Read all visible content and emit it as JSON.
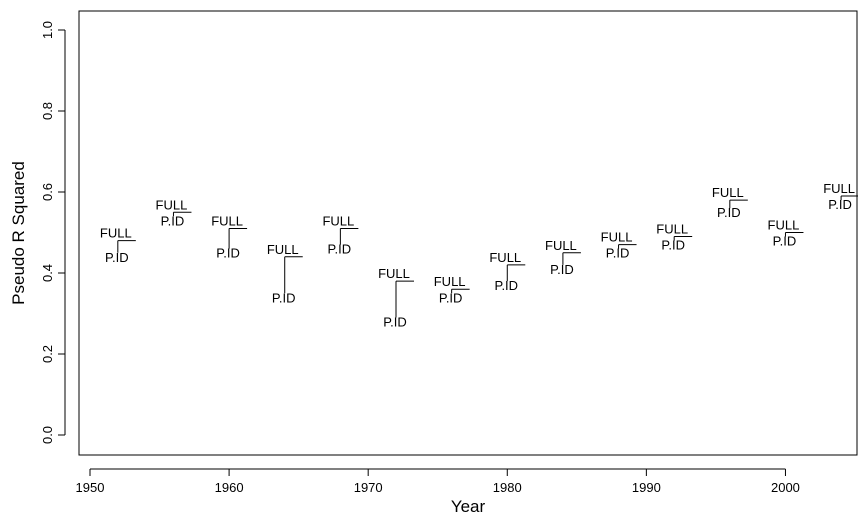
{
  "chart_data": {
    "type": "scatter",
    "title": "",
    "xlabel": "Year",
    "ylabel": "Pseudo R Squared",
    "xlim": [
      1950,
      2005
    ],
    "ylim": [
      0.0,
      1.0
    ],
    "x_ticks": [
      1950,
      1960,
      1970,
      1980,
      1990,
      2000
    ],
    "y_ticks": [
      0.0,
      0.2,
      0.4,
      0.6,
      0.8,
      1.0
    ],
    "grid": false,
    "legend": "none",
    "series": [
      {
        "name": "FULL",
        "values": [
          0.48,
          0.55,
          0.51,
          0.44,
          0.51,
          0.38,
          0.36,
          0.42,
          0.45,
          0.47,
          0.49,
          0.58,
          0.5,
          0.59
        ]
      },
      {
        "name": "P.ID",
        "values": [
          0.45,
          0.54,
          0.46,
          0.35,
          0.47,
          0.29,
          0.35,
          0.38,
          0.42,
          0.46,
          0.48,
          0.56,
          0.49,
          0.58
        ]
      }
    ],
    "x": [
      1952,
      1956,
      1960,
      1964,
      1968,
      1972,
      1976,
      1980,
      1984,
      1988,
      1992,
      1996,
      2000,
      2004
    ]
  }
}
